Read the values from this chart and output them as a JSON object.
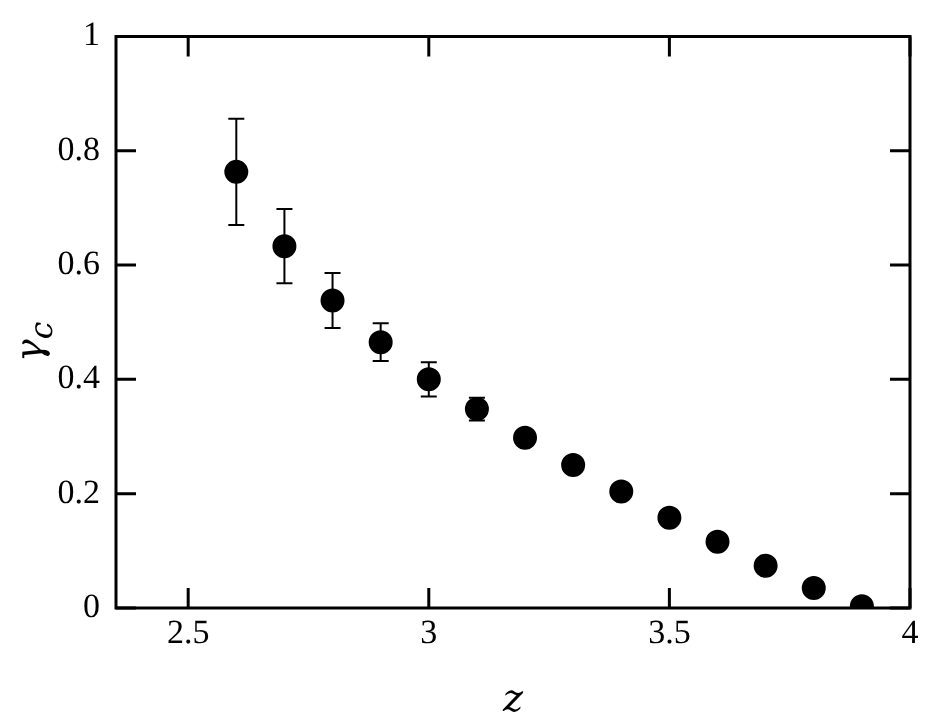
{
  "chart_data": {
    "type": "scatter",
    "xlabel": "z",
    "ylabel": "γ$_{c}$",
    "x": [
      2.6,
      2.7,
      2.8,
      2.9,
      3.0,
      3.1,
      3.2,
      3.3,
      3.4,
      3.5,
      3.6,
      3.7,
      3.8,
      3.9
    ],
    "series": [
      {
        "color": "#000000",
        "values": [
          0.763,
          0.633,
          0.538,
          0.465,
          0.4,
          0.348,
          0.298,
          0.25,
          0.204,
          0.158,
          0.116,
          0.074,
          0.035,
          0.003
        ],
        "errors": [
          0.093,
          0.065,
          0.048,
          0.033,
          0.03,
          0.02,
          null,
          null,
          null,
          null,
          null,
          null,
          null,
          null
        ]
      }
    ],
    "xlim": [
      2.35,
      4
    ],
    "xticks": [
      2.5,
      3,
      3.5,
      4
    ],
    "ylim": [
      0,
      1
    ],
    "yticks": [
      0,
      0.2,
      0.4,
      0.6,
      0.8,
      1
    ],
    "marker": "circle",
    "grid": false,
    "legend": false
  }
}
